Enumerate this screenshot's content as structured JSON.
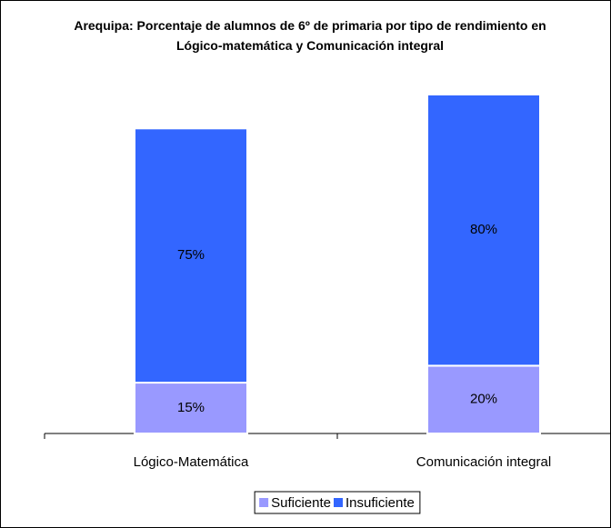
{
  "chart_data": {
    "type": "stacked_bar",
    "title": "Arequipa: Porcentaje de alumnos de 6º de primaria por tipo de rendimiento en Lógico-matemática y Comunicación integral",
    "categories": [
      "Lógico-Matemática",
      "Comunicación integral"
    ],
    "series": [
      {
        "name": "Suficiente",
        "color": "#9999ff",
        "values": [
          15,
          20
        ],
        "value_labels": [
          "15%",
          "20%"
        ]
      },
      {
        "name": "Insuficiente",
        "color": "#3366ff",
        "values": [
          75,
          80
        ],
        "value_labels": [
          "75%",
          "80%"
        ]
      }
    ],
    "legend": "bottom"
  }
}
